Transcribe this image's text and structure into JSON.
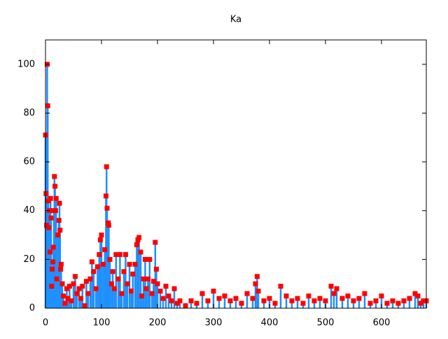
{
  "chart_data": {
    "type": "impulses-points",
    "title": "Ka",
    "x": [
      0,
      1,
      2,
      3,
      4,
      5,
      6,
      7,
      8,
      9,
      10,
      11,
      12,
      13,
      14,
      15,
      16,
      17,
      18,
      19,
      20,
      22,
      24,
      25,
      26,
      27,
      28,
      30,
      32,
      35,
      38,
      40,
      43,
      46,
      50,
      53,
      56,
      60,
      63,
      66,
      70,
      73,
      76,
      80,
      83,
      86,
      90,
      93,
      96,
      98,
      100,
      103,
      106,
      108,
      109,
      110,
      112,
      113,
      115,
      118,
      120,
      123,
      126,
      130,
      133,
      136,
      140,
      143,
      146,
      150,
      153,
      156,
      160,
      163,
      165,
      167,
      170,
      172,
      175,
      178,
      180,
      183,
      186,
      190,
      193,
      196,
      198,
      200,
      205,
      210,
      215,
      220,
      225,
      230,
      235,
      240,
      250,
      260,
      270,
      280,
      290,
      300,
      310,
      320,
      330,
      340,
      350,
      360,
      370,
      375,
      378,
      380,
      390,
      400,
      410,
      420,
      430,
      440,
      450,
      460,
      470,
      480,
      490,
      500,
      510,
      515,
      520,
      530,
      540,
      550,
      560,
      570,
      580,
      590,
      600,
      610,
      620,
      630,
      640,
      650,
      660,
      665,
      670,
      675,
      680
    ],
    "series": [
      {
        "color": "#1e90ff",
        "point_color": "#ff0000",
        "values": [
          71,
          47,
          34,
          100,
          83,
          44,
          33,
          40,
          23,
          45,
          37,
          9,
          16,
          19,
          25,
          40,
          54,
          50,
          40,
          45,
          12,
          30,
          36,
          43,
          32,
          16,
          18,
          10,
          5,
          2,
          8,
          4,
          9,
          3,
          10,
          13,
          6,
          8,
          4,
          9,
          1,
          11,
          6,
          12,
          19,
          15,
          8,
          17,
          22,
          28,
          30,
          18,
          24,
          46,
          58,
          41,
          35,
          34,
          20,
          10,
          15,
          8,
          22,
          12,
          22,
          6,
          15,
          22,
          10,
          18,
          7,
          14,
          18,
          26,
          28,
          29,
          23,
          5,
          12,
          20,
          8,
          12,
          20,
          6,
          11,
          27,
          16,
          10,
          7,
          4,
          9,
          5,
          3,
          8,
          2,
          3,
          1,
          3,
          2,
          6,
          3,
          7,
          4,
          5,
          3,
          4,
          2,
          6,
          4,
          10,
          13,
          7,
          3,
          4,
          2,
          9,
          5,
          3,
          4,
          2,
          5,
          3,
          4,
          3,
          9,
          6,
          8,
          4,
          5,
          3,
          4,
          6,
          2,
          3,
          5,
          2,
          3,
          2,
          3,
          4,
          6,
          5,
          2,
          3,
          3
        ]
      }
    ],
    "xlim": [
      0,
      680
    ],
    "ylim": [
      0,
      110
    ],
    "xticks": [
      0,
      100,
      200,
      300,
      400,
      500,
      600
    ],
    "yticks": [
      0,
      20,
      40,
      60,
      80,
      100
    ]
  }
}
